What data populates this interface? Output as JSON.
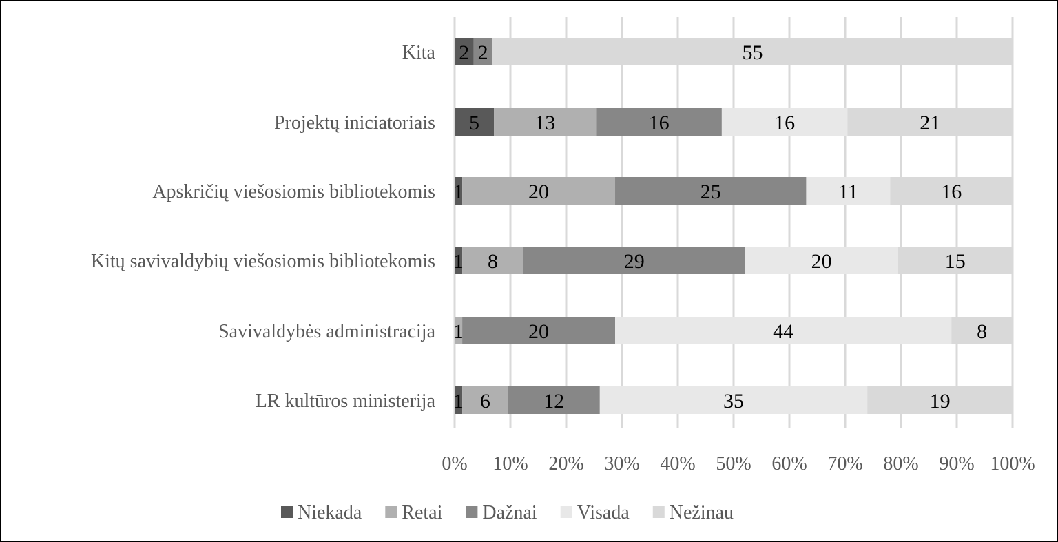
{
  "chart_data": {
    "type": "bar",
    "orientation": "horizontal",
    "stacked": "percent",
    "title": "",
    "xlabel": "",
    "ylabel": "",
    "xlim": [
      0,
      100
    ],
    "x_ticks": [
      "0%",
      "10%",
      "20%",
      "30%",
      "40%",
      "50%",
      "60%",
      "70%",
      "80%",
      "90%",
      "100%"
    ],
    "grid": "vertical",
    "legend_position": "bottom",
    "categories": [
      "LR kultūros ministerija",
      "Savivaldybės administracija",
      "Kitų savivaldybių viešosiomis bibliotekomis",
      "Apskričių viešosiomis bibliotekomis",
      "Projektų iniciatoriais",
      "Kita"
    ],
    "series": [
      {
        "name": "Niekada",
        "color": "#595959",
        "values": [
          1,
          0,
          1,
          1,
          5,
          2
        ]
      },
      {
        "name": "Retai",
        "color": "#b0b0b0",
        "values": [
          6,
          1,
          8,
          20,
          13,
          0
        ]
      },
      {
        "name": "Dažnai",
        "color": "#878787",
        "values": [
          12,
          20,
          29,
          25,
          16,
          2
        ]
      },
      {
        "name": "Visada",
        "color": "#e8e8e8",
        "values": [
          35,
          44,
          20,
          11,
          16,
          0
        ]
      },
      {
        "name": "Nežinau",
        "color": "#d9d9d9",
        "values": [
          19,
          8,
          15,
          16,
          21,
          55
        ]
      }
    ]
  }
}
